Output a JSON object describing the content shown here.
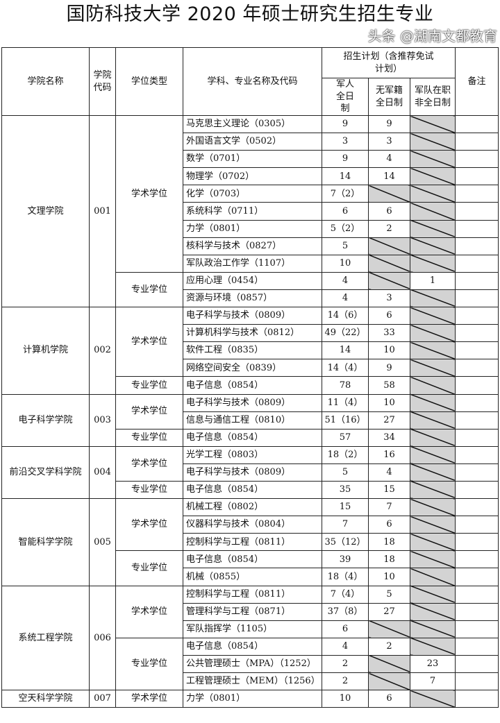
{
  "title": "国防科技大学 2020 年硕士研究生招生专业",
  "headers": {
    "college": "学院名称",
    "code": "学院代码",
    "degree": "学位类型",
    "subject": "学科、专业名称及代码",
    "plan": "招生计划（含推荐免试计划）",
    "military_ft": "军人全日制",
    "civilian_ft": "无军籍全日制",
    "military_pt": "军队在职非全日制",
    "notes": "备注"
  },
  "colleges": [
    {
      "name": "文理学院",
      "code": "001",
      "groups": [
        {
          "degree": "学术学位",
          "rows": [
            [
              "马克思主义理论（0305）",
              "9",
              "9",
              null
            ],
            [
              "外国语言文学（0502）",
              "3",
              "3",
              null
            ],
            [
              "数学（0701）",
              "9",
              "4",
              null
            ],
            [
              "物理学（0702）",
              "14",
              "14",
              null
            ],
            [
              "化学（0703）",
              "7（2）",
              null,
              null
            ],
            [
              "系统科学（0711）",
              "6",
              "6",
              null
            ],
            [
              "力学（0801）",
              "5（2）",
              "2",
              null
            ],
            [
              "核科学与技术（0827）",
              "5",
              null,
              null
            ],
            [
              "军队政治工作学（1107）",
              "10",
              null,
              null
            ]
          ]
        },
        {
          "degree": "专业学位",
          "rows": [
            [
              "应用心理（0454）",
              "4",
              null,
              "1"
            ],
            [
              "资源与环境（0857）",
              "4",
              "3",
              null
            ]
          ]
        }
      ]
    },
    {
      "name": "计算机学院",
      "code": "002",
      "groups": [
        {
          "degree": "学术学位",
          "rows": [
            [
              "电子科学与技术（0809）",
              "14（6）",
              "6",
              null
            ],
            [
              "计算机科学与技术（0812）",
              "49（22）",
              "33",
              null
            ],
            [
              "软件工程（0835）",
              "14",
              "10",
              null
            ],
            [
              "网络空间安全（0839）",
              "14（4）",
              "9",
              null
            ]
          ]
        },
        {
          "degree": "专业学位",
          "rows": [
            [
              "电子信息（0854）",
              "78",
              "58",
              null
            ]
          ]
        }
      ]
    },
    {
      "name": "电子科学学院",
      "code": "003",
      "groups": [
        {
          "degree": "学术学位",
          "rows": [
            [
              "电子科学与技术（0809）",
              "11（4）",
              "10",
              null
            ],
            [
              "信息与通信工程（0810）",
              "51（16）",
              "27",
              null
            ]
          ]
        },
        {
          "degree": "专业学位",
          "rows": [
            [
              "电子信息（0854）",
              "57",
              "34",
              null
            ]
          ]
        }
      ]
    },
    {
      "name": "前沿交叉学科学院",
      "code": "004",
      "groups": [
        {
          "degree": "学术学位",
          "rows": [
            [
              "光学工程（0803）",
              "18（2）",
              "16",
              null
            ],
            [
              "电子科学与技术（0809）",
              "5",
              "4",
              null
            ]
          ]
        },
        {
          "degree": "专业学位",
          "rows": [
            [
              "电子信息（0854）",
              "35",
              "15",
              null
            ]
          ]
        }
      ]
    },
    {
      "name": "智能科学学院",
      "code": "005",
      "groups": [
        {
          "degree": "学术学位",
          "rows": [
            [
              "机械工程（0802）",
              "15",
              "7",
              null
            ],
            [
              "仪器科学与技术（0804）",
              "7",
              "6",
              null
            ],
            [
              "控制科学与工程（0811）",
              "35（12）",
              "18",
              null
            ]
          ]
        },
        {
          "degree": "专业学位",
          "rows": [
            [
              "电子信息（0854）",
              "39",
              "18",
              null
            ],
            [
              "机械（0855）",
              "18（4）",
              "10",
              null
            ]
          ]
        }
      ]
    },
    {
      "name": "系统工程学院",
      "code": "006",
      "groups": [
        {
          "degree": "学术学位",
          "rows": [
            [
              "控制科学与工程（0811）",
              "7（4）",
              "5",
              null
            ],
            [
              "管理科学与工程（0871）",
              "37（8）",
              "27",
              null
            ],
            [
              "军队指挥学（1105）",
              "6",
              null,
              null
            ]
          ]
        },
        {
          "degree": "专业学位",
          "rows": [
            [
              "电子信息（0854）",
              "4",
              "2",
              null
            ],
            [
              "公共管理硕士（MPA）（1252）",
              "2",
              null,
              "23"
            ],
            [
              "工程管理硕士（MEM）（1256）",
              "2",
              null,
              "7"
            ]
          ]
        }
      ]
    },
    {
      "name": "空天科学学院",
      "code": "007",
      "groups": [
        {
          "degree": "学术学位",
          "rows": [
            [
              "力学（0801）",
              "10",
              "6",
              null
            ]
          ]
        }
      ]
    }
  ],
  "watermark": "头条 @湖南文都教育",
  "colors": {
    "not_applicable_fill": "#d3d3d3"
  }
}
